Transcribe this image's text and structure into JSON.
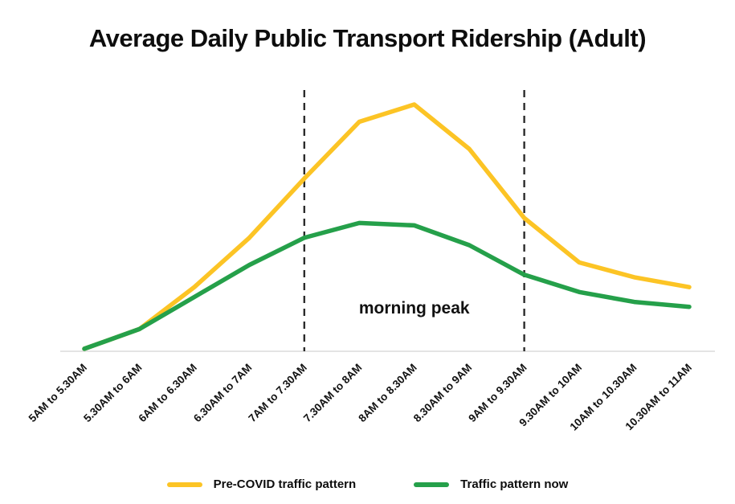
{
  "title": "Average Daily Public Transport Ridership (Adult)",
  "chart_data": {
    "type": "line",
    "categories": [
      "5AM to 5.30AM",
      "5.30AM to 6AM",
      "6AM to 6.30AM",
      "6.30AM to 7AM",
      "7AM to 7.30AM",
      "7.30AM to 8AM",
      "8AM to 8.30AM",
      "8.30AM to 9AM",
      "9AM to 9.30AM",
      "9.30AM to 10AM",
      "10AM to 10.30AM",
      "10.30AM to 11AM"
    ],
    "series": [
      {
        "name": "Pre-COVID traffic pattern",
        "color": "#FCC425",
        "values": [
          1,
          9,
          26,
          46,
          70,
          93,
          100,
          82,
          54,
          36,
          30,
          26
        ]
      },
      {
        "name": "Traffic pattern now",
        "color": "#25A04A",
        "values": [
          1,
          9,
          22,
          35,
          46,
          52,
          51,
          43,
          31,
          24,
          20,
          18
        ]
      }
    ],
    "annotation": "morning peak",
    "dashed_line_categories": [
      "7AM to 7.30AM",
      "9AM to 9.30AM"
    ],
    "dashed_line_indices": [
      4,
      8
    ],
    "ylim": [
      0,
      100
    ],
    "grid": false,
    "xlabel": "",
    "ylabel": "",
    "legend_position": "bottom"
  },
  "legend": {
    "items": [
      {
        "label": "Pre-COVID traffic pattern",
        "color": "#FCC425"
      },
      {
        "label": "Traffic pattern now",
        "color": "#25A04A"
      }
    ]
  }
}
